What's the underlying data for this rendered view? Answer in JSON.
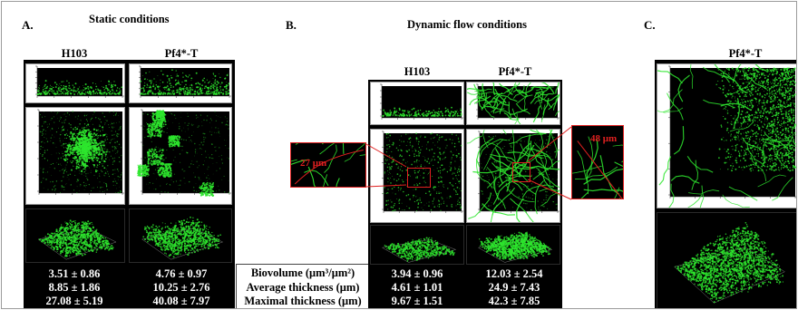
{
  "panels": {
    "A": {
      "letter": "A.",
      "heading": "Static conditions",
      "columns": [
        "H103",
        "Pf4*-T"
      ],
      "stats": [
        [
          "3.51 ± 0.86",
          "8.85 ± 1.86",
          "27.08 ± 5.19"
        ],
        [
          "4.76 ± 0.97",
          "10.25 ± 2.76",
          "40.08 ± 7.97"
        ]
      ]
    },
    "B": {
      "letter": "B.",
      "heading": "Dynamic flow conditions",
      "columns": [
        "H103",
        "Pf4*-T"
      ],
      "zoom_labels": [
        "27 μm",
        "48 μm"
      ],
      "stats": [
        [
          "3.94 ± 0.96",
          "4.61 ± 1.01",
          "9.67 ± 1.51"
        ],
        [
          "12.03 ± 2.54",
          "24.9 ± 7.43",
          "42.3 ± 7.85"
        ]
      ]
    },
    "C": {
      "letter": "C.",
      "columns": [
        "Pf4*-T"
      ]
    }
  },
  "metrics": [
    "Biovolume (μm³/μm²)",
    "Average thickness (μm)",
    "Maximal thickness (μm)"
  ],
  "colors": {
    "biofilm": "#2ee62e",
    "background": "#000000",
    "zoom_outline": "#e02020"
  }
}
